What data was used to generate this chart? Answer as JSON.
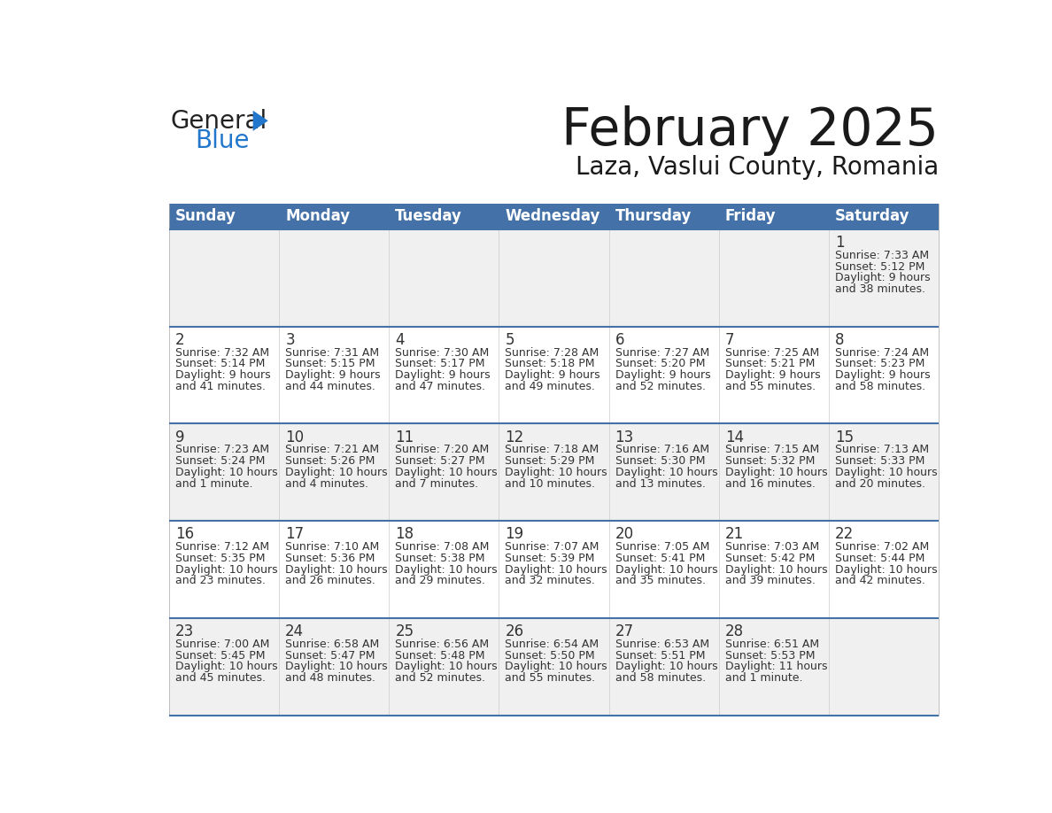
{
  "title": "February 2025",
  "subtitle": "Laza, Vaslui County, Romania",
  "header_bg": "#4472A8",
  "header_text": "#FFFFFF",
  "row_bg": [
    "#F0F0F0",
    "#FFFFFF",
    "#F0F0F0",
    "#FFFFFF",
    "#F0F0F0"
  ],
  "separator_color": "#4472A8",
  "text_color": "#333333",
  "day_headers": [
    "Sunday",
    "Monday",
    "Tuesday",
    "Wednesday",
    "Thursday",
    "Friday",
    "Saturday"
  ],
  "days": [
    {
      "day": 1,
      "col": 6,
      "row": 0,
      "sunrise": "7:33 AM",
      "sunset": "5:12 PM",
      "daylight": "9 hours and 38 minutes."
    },
    {
      "day": 2,
      "col": 0,
      "row": 1,
      "sunrise": "7:32 AM",
      "sunset": "5:14 PM",
      "daylight": "9 hours and 41 minutes."
    },
    {
      "day": 3,
      "col": 1,
      "row": 1,
      "sunrise": "7:31 AM",
      "sunset": "5:15 PM",
      "daylight": "9 hours and 44 minutes."
    },
    {
      "day": 4,
      "col": 2,
      "row": 1,
      "sunrise": "7:30 AM",
      "sunset": "5:17 PM",
      "daylight": "9 hours and 47 minutes."
    },
    {
      "day": 5,
      "col": 3,
      "row": 1,
      "sunrise": "7:28 AM",
      "sunset": "5:18 PM",
      "daylight": "9 hours and 49 minutes."
    },
    {
      "day": 6,
      "col": 4,
      "row": 1,
      "sunrise": "7:27 AM",
      "sunset": "5:20 PM",
      "daylight": "9 hours and 52 minutes."
    },
    {
      "day": 7,
      "col": 5,
      "row": 1,
      "sunrise": "7:25 AM",
      "sunset": "5:21 PM",
      "daylight": "9 hours and 55 minutes."
    },
    {
      "day": 8,
      "col": 6,
      "row": 1,
      "sunrise": "7:24 AM",
      "sunset": "5:23 PM",
      "daylight": "9 hours and 58 minutes."
    },
    {
      "day": 9,
      "col": 0,
      "row": 2,
      "sunrise": "7:23 AM",
      "sunset": "5:24 PM",
      "daylight": "10 hours and 1 minute."
    },
    {
      "day": 10,
      "col": 1,
      "row": 2,
      "sunrise": "7:21 AM",
      "sunset": "5:26 PM",
      "daylight": "10 hours and 4 minutes."
    },
    {
      "day": 11,
      "col": 2,
      "row": 2,
      "sunrise": "7:20 AM",
      "sunset": "5:27 PM",
      "daylight": "10 hours and 7 minutes."
    },
    {
      "day": 12,
      "col": 3,
      "row": 2,
      "sunrise": "7:18 AM",
      "sunset": "5:29 PM",
      "daylight": "10 hours and 10 minutes."
    },
    {
      "day": 13,
      "col": 4,
      "row": 2,
      "sunrise": "7:16 AM",
      "sunset": "5:30 PM",
      "daylight": "10 hours and 13 minutes."
    },
    {
      "day": 14,
      "col": 5,
      "row": 2,
      "sunrise": "7:15 AM",
      "sunset": "5:32 PM",
      "daylight": "10 hours and 16 minutes."
    },
    {
      "day": 15,
      "col": 6,
      "row": 2,
      "sunrise": "7:13 AM",
      "sunset": "5:33 PM",
      "daylight": "10 hours and 20 minutes."
    },
    {
      "day": 16,
      "col": 0,
      "row": 3,
      "sunrise": "7:12 AM",
      "sunset": "5:35 PM",
      "daylight": "10 hours and 23 minutes."
    },
    {
      "day": 17,
      "col": 1,
      "row": 3,
      "sunrise": "7:10 AM",
      "sunset": "5:36 PM",
      "daylight": "10 hours and 26 minutes."
    },
    {
      "day": 18,
      "col": 2,
      "row": 3,
      "sunrise": "7:08 AM",
      "sunset": "5:38 PM",
      "daylight": "10 hours and 29 minutes."
    },
    {
      "day": 19,
      "col": 3,
      "row": 3,
      "sunrise": "7:07 AM",
      "sunset": "5:39 PM",
      "daylight": "10 hours and 32 minutes."
    },
    {
      "day": 20,
      "col": 4,
      "row": 3,
      "sunrise": "7:05 AM",
      "sunset": "5:41 PM",
      "daylight": "10 hours and 35 minutes."
    },
    {
      "day": 21,
      "col": 5,
      "row": 3,
      "sunrise": "7:03 AM",
      "sunset": "5:42 PM",
      "daylight": "10 hours and 39 minutes."
    },
    {
      "day": 22,
      "col": 6,
      "row": 3,
      "sunrise": "7:02 AM",
      "sunset": "5:44 PM",
      "daylight": "10 hours and 42 minutes."
    },
    {
      "day": 23,
      "col": 0,
      "row": 4,
      "sunrise": "7:00 AM",
      "sunset": "5:45 PM",
      "daylight": "10 hours and 45 minutes."
    },
    {
      "day": 24,
      "col": 1,
      "row": 4,
      "sunrise": "6:58 AM",
      "sunset": "5:47 PM",
      "daylight": "10 hours and 48 minutes."
    },
    {
      "day": 25,
      "col": 2,
      "row": 4,
      "sunrise": "6:56 AM",
      "sunset": "5:48 PM",
      "daylight": "10 hours and 52 minutes."
    },
    {
      "day": 26,
      "col": 3,
      "row": 4,
      "sunrise": "6:54 AM",
      "sunset": "5:50 PM",
      "daylight": "10 hours and 55 minutes."
    },
    {
      "day": 27,
      "col": 4,
      "row": 4,
      "sunrise": "6:53 AM",
      "sunset": "5:51 PM",
      "daylight": "10 hours and 58 minutes."
    },
    {
      "day": 28,
      "col": 5,
      "row": 4,
      "sunrise": "6:51 AM",
      "sunset": "5:53 PM",
      "daylight": "11 hours and 1 minute."
    }
  ],
  "logo_general_color": "#222222",
  "logo_blue_color": "#2277CC",
  "logo_triangle_color": "#2277CC",
  "title_fontsize": 42,
  "subtitle_fontsize": 20,
  "header_fontsize": 12,
  "day_num_fontsize": 12,
  "cell_text_fontsize": 9
}
